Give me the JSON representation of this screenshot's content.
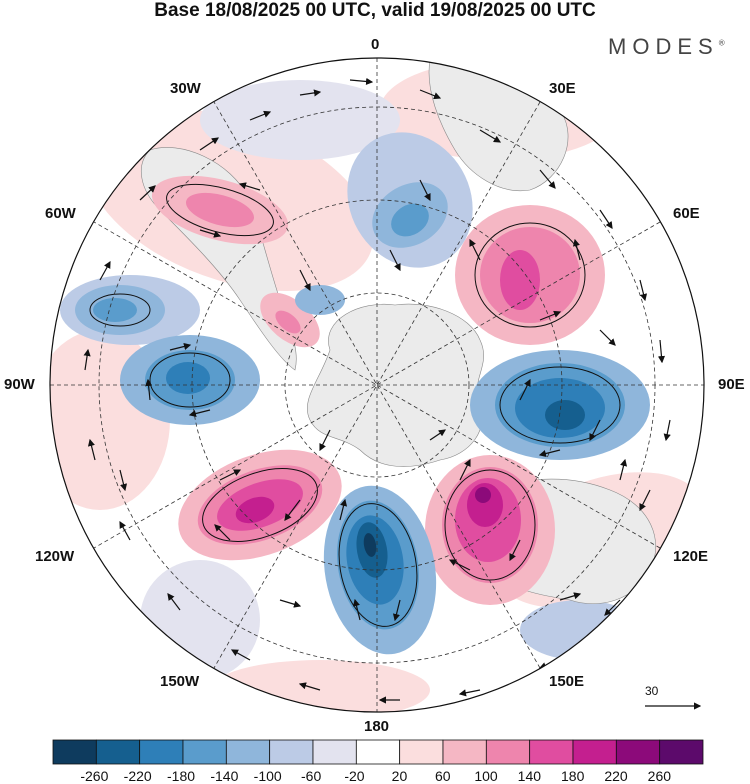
{
  "title": "Base 18/08/2025 00 UTC, valid 19/08/2025 00 UTC",
  "logo": "MODES",
  "logo_mark": "®",
  "longitude_labels": {
    "n0": "0",
    "n30e": "30E",
    "n60e": "60E",
    "n90e": "90E",
    "n120e": "120E",
    "n150e": "150E",
    "n180": "180",
    "n150w": "150W",
    "n120w": "120W",
    "n90w": "90W",
    "n60w": "60W",
    "n30w": "30W"
  },
  "reference_vector": {
    "label": "30"
  },
  "colorbar": {
    "labels": [
      "-260",
      "-220",
      "-180",
      "-140",
      "-100",
      "-60",
      "-20",
      "20",
      "60",
      "100",
      "140",
      "180",
      "220",
      "260"
    ],
    "colors": [
      "#0e3b5e",
      "#155f8f",
      "#2e7fb8",
      "#5a9ccc",
      "#8fb6db",
      "#bccbe6",
      "#e3e3ef",
      "#ffffff",
      "#fbdede",
      "#f5b7c4",
      "#ee85ad",
      "#e04da0",
      "#c41f8f",
      "#8c0a7a",
      "#5c0a6b"
    ]
  },
  "colors": {
    "land": "#ebebeb",
    "ocean_bg": "#ffffff",
    "grid": "#333333"
  }
}
